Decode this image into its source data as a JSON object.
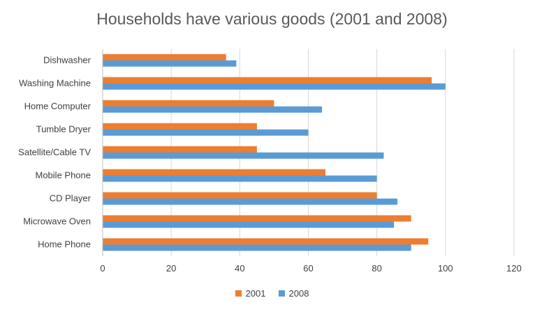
{
  "chart_data": {
    "type": "bar",
    "orientation": "horizontal",
    "title": "Households have various goods (2001 and 2008)",
    "xlabel": "",
    "ylabel": "",
    "categories": [
      "Dishwasher",
      "Washing Machine",
      "Home Computer",
      "Tumble Dryer",
      "Satellite/Cable TV",
      "Mobile Phone",
      "CD Player",
      "Microwave Oven",
      "Home Phone"
    ],
    "series": [
      {
        "name": "2001",
        "color": "#ED7D31",
        "values": [
          36,
          96,
          50,
          45,
          45,
          65,
          80,
          90,
          95
        ]
      },
      {
        "name": "2008",
        "color": "#5B9BD5",
        "values": [
          39,
          100,
          64,
          60,
          82,
          80,
          86,
          85,
          90
        ]
      }
    ],
    "xlim": [
      0,
      120
    ],
    "xticks": [
      "0",
      "20",
      "40",
      "60",
      "80",
      "100",
      "120"
    ],
    "grid": true,
    "legend": "bottom"
  }
}
